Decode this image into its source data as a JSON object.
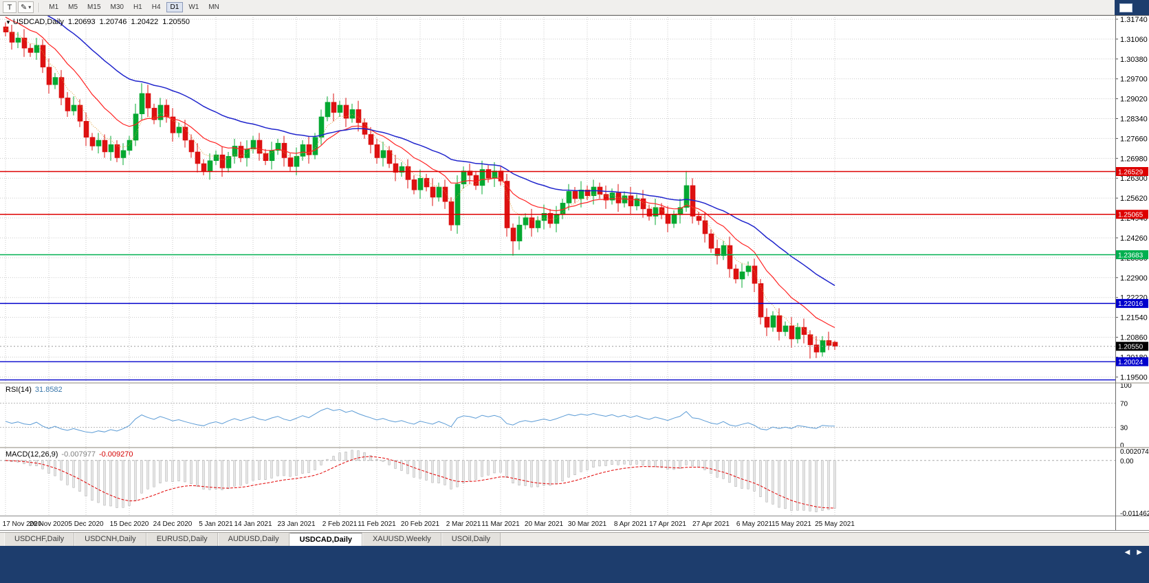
{
  "toolbar": {
    "text_tool": "T",
    "pencil_icon": "✎",
    "caret_icon": "▾",
    "timeframes": [
      "M1",
      "M5",
      "M15",
      "M30",
      "H1",
      "H4",
      "D1",
      "W1",
      "MN"
    ],
    "active_timeframe": "D1"
  },
  "chart_header": {
    "collapse_icon": "▼",
    "symbol": "USDCAD,Daily",
    "open": "1.20693",
    "high": "1.20746",
    "low": "1.20422",
    "close": "1.20550"
  },
  "indicators_ui": {
    "rsi_name": "RSI(14)",
    "rsi_value": "31.8582",
    "macd_name": "MACD(12,26,9)",
    "macd_main": "-0.007977",
    "macd_signal": "-0.009270"
  },
  "tabs": {
    "items": [
      "USDCHF,Daily",
      "USDCNH,Daily",
      "EURUSD,Daily",
      "AUDUSD,Daily",
      "USDCAD,Daily",
      "XAUUSD,Weekly",
      "USOil,Daily"
    ],
    "active": "USDCAD,Daily"
  },
  "tab_scroll": {
    "left": "◀",
    "right": "▶"
  },
  "chart_data": {
    "type": "candlestick",
    "symbol": "USDCAD",
    "timeframe": "Daily",
    "y_range": {
      "top": 1.3188,
      "bottom": 1.1932
    },
    "y_axis_labels": [
      "1.31740",
      "1.31060",
      "1.30380",
      "1.29700",
      "1.29020",
      "1.28340",
      "1.27660",
      "1.26980",
      "1.26300",
      "1.25620",
      "1.24940",
      "1.24260",
      "1.23580",
      "1.22900",
      "1.22220",
      "1.21540",
      "1.20860",
      "1.20180",
      "1.19500"
    ],
    "x_labels": [
      "17 Nov 2020",
      "26 Nov 2020",
      "5 Dec 2020",
      "15 Dec 2020",
      "24 Dec 2020",
      "5 Jan 2021",
      "14 Jan 2021",
      "23 Jan 2021",
      "2 Feb 2021",
      "11 Feb 2021",
      "20 Feb 2021",
      "2 Mar 2021",
      "11 Mar 2021",
      "20 Mar 2021",
      "30 Mar 2021",
      "8 Apr 2021",
      "17 Apr 2021",
      "27 Apr 2021",
      "6 May 2021",
      "15 May 2021",
      "25 May 2021"
    ],
    "current_price": {
      "value": 1.2055,
      "label": "1.20550"
    },
    "hlines": [
      {
        "price": 1.26529,
        "label": "1.26529",
        "color": "#dd0000"
      },
      {
        "price": 1.25065,
        "label": "1.25065",
        "color": "#dd0000"
      },
      {
        "price": 1.23683,
        "label": "1.23683",
        "color": "#00b050"
      },
      {
        "price": 1.22016,
        "label": "1.22016",
        "color": "#0000cc"
      },
      {
        "price": 1.20024,
        "label": "1.20024",
        "color": "#0000cc"
      },
      {
        "price": 1.194,
        "label": "",
        "color": "#0000cc"
      }
    ],
    "colors": {
      "up": "#04a831",
      "down": "#dd1111",
      "grid": "#c9c9c9",
      "hist_fill": "#e6e6e6",
      "hist_stroke": "#a5a5a5"
    },
    "indicators": {
      "ma": [
        {
          "period": 5,
          "color": "#dd9c33",
          "dash": "1,2",
          "width": 1,
          "seed_offset": 0.002
        },
        {
          "period": 13,
          "color": "#ff2222",
          "dash": "",
          "width": 1.2,
          "seed_offset": 0.006
        },
        {
          "period": 34,
          "color": "#1f24cc",
          "dash": "",
          "width": 1.5,
          "seed_offset": 0.013
        }
      ],
      "rsi": {
        "period": 14,
        "color": "#5b9bd5",
        "levels": [
          70,
          30
        ],
        "axis_labels": [
          {
            "v": 100,
            "label": "100"
          },
          {
            "v": 70,
            "label": "70"
          },
          {
            "v": 30,
            "label": "30"
          },
          {
            "v": 0,
            "label": "0"
          }
        ]
      },
      "macd": {
        "fast": 12,
        "slow": 26,
        "signal": 9,
        "range": {
          "top": 0.002074,
          "bottom": -0.011462
        },
        "axis_labels": [
          {
            "v": 0.002074,
            "label": "0.002074"
          },
          {
            "v": 0,
            "label": "0.00"
          },
          {
            "v": -0.011462,
            "label": "-0.011462"
          }
        ]
      }
    },
    "candles": [
      [
        1.3148,
        1.3163,
        1.3115,
        1.313
      ],
      [
        1.313,
        1.3155,
        1.307,
        1.3095
      ],
      [
        1.3095,
        1.313,
        1.3075,
        1.311
      ],
      [
        1.311,
        1.314,
        1.3045,
        1.3075
      ],
      [
        1.3075,
        1.309,
        1.3045,
        1.306
      ],
      [
        1.306,
        1.311,
        1.3035,
        1.3085
      ],
      [
        1.3085,
        1.3105,
        1.299,
        1.301
      ],
      [
        1.301,
        1.304,
        1.292,
        1.295
      ],
      [
        1.295,
        1.299,
        1.2935,
        1.2975
      ],
      [
        1.2975,
        1.3,
        1.288,
        1.2905
      ],
      [
        1.2905,
        1.2925,
        1.284,
        1.286
      ],
      [
        1.286,
        1.291,
        1.2845,
        1.288
      ],
      [
        1.288,
        1.29,
        1.2805,
        1.2825
      ],
      [
        1.2825,
        1.2855,
        1.274,
        1.277
      ],
      [
        1.277,
        1.2785,
        1.2725,
        1.274
      ],
      [
        1.274,
        1.2785,
        1.2715,
        1.276
      ],
      [
        1.276,
        1.278,
        1.27,
        1.272
      ],
      [
        1.272,
        1.2775,
        1.269,
        1.2745
      ],
      [
        1.2745,
        1.276,
        1.2685,
        1.27
      ],
      [
        1.27,
        1.275,
        1.2675,
        1.2725
      ],
      [
        1.2725,
        1.2775,
        1.271,
        1.276
      ],
      [
        1.276,
        1.2885,
        1.274,
        1.285
      ],
      [
        1.285,
        1.2955,
        1.283,
        1.292
      ],
      [
        1.292,
        1.295,
        1.284,
        1.287
      ],
      [
        1.287,
        1.2885,
        1.2815,
        1.283
      ],
      [
        1.283,
        1.2905,
        1.2805,
        1.288
      ],
      [
        1.288,
        1.29,
        1.282,
        1.284
      ],
      [
        1.284,
        1.287,
        1.2755,
        1.2785
      ],
      [
        1.2785,
        1.282,
        1.277,
        1.2805
      ],
      [
        1.2805,
        1.283,
        1.2735,
        1.276
      ],
      [
        1.276,
        1.278,
        1.27,
        1.272
      ],
      [
        1.272,
        1.275,
        1.265,
        1.268
      ],
      [
        1.268,
        1.2695,
        1.264,
        1.2655
      ],
      [
        1.2655,
        1.2715,
        1.2625,
        1.269
      ],
      [
        1.269,
        1.2725,
        1.2675,
        1.271
      ],
      [
        1.271,
        1.274,
        1.2635,
        1.2665
      ],
      [
        1.2665,
        1.272,
        1.265,
        1.2705
      ],
      [
        1.2705,
        1.2765,
        1.268,
        1.274
      ],
      [
        1.274,
        1.2755,
        1.2685,
        1.27
      ],
      [
        1.27,
        1.276,
        1.267,
        1.273
      ],
      [
        1.273,
        1.2775,
        1.2715,
        1.276
      ],
      [
        1.276,
        1.2785,
        1.269,
        1.2715
      ],
      [
        1.2715,
        1.273,
        1.2675,
        1.269
      ],
      [
        1.269,
        1.2755,
        1.266,
        1.2725
      ],
      [
        1.2725,
        1.2765,
        1.271,
        1.275
      ],
      [
        1.275,
        1.2775,
        1.267,
        1.27
      ],
      [
        1.27,
        1.2715,
        1.2655,
        1.267
      ],
      [
        1.267,
        1.2735,
        1.264,
        1.2705
      ],
      [
        1.2705,
        1.276,
        1.269,
        1.2745
      ],
      [
        1.2745,
        1.2775,
        1.268,
        1.271
      ],
      [
        1.271,
        1.2785,
        1.2695,
        1.277
      ],
      [
        1.277,
        1.2865,
        1.2745,
        1.284
      ],
      [
        1.284,
        1.291,
        1.2825,
        1.289
      ],
      [
        1.289,
        1.292,
        1.2825,
        1.2855
      ],
      [
        1.2855,
        1.2895,
        1.284,
        1.288
      ],
      [
        1.288,
        1.2905,
        1.2805,
        1.2835
      ],
      [
        1.2835,
        1.2885,
        1.282,
        1.2865
      ],
      [
        1.2865,
        1.2895,
        1.279,
        1.282
      ],
      [
        1.282,
        1.2835,
        1.2765,
        1.278
      ],
      [
        1.278,
        1.2805,
        1.2715,
        1.2745
      ],
      [
        1.2745,
        1.2765,
        1.268,
        1.27
      ],
      [
        1.27,
        1.2755,
        1.267,
        1.2725
      ],
      [
        1.2725,
        1.274,
        1.2665,
        1.268
      ],
      [
        1.268,
        1.271,
        1.262,
        1.265
      ],
      [
        1.265,
        1.2685,
        1.2635,
        1.267
      ],
      [
        1.267,
        1.2695,
        1.2595,
        1.2625
      ],
      [
        1.2625,
        1.264,
        1.2575,
        1.259
      ],
      [
        1.259,
        1.266,
        1.256,
        1.263
      ],
      [
        1.263,
        1.2645,
        1.2585,
        1.26
      ],
      [
        1.26,
        1.263,
        1.2535,
        1.2565
      ],
      [
        1.2565,
        1.2615,
        1.255,
        1.26
      ],
      [
        1.26,
        1.2625,
        1.2525,
        1.255
      ],
      [
        1.255,
        1.2565,
        1.245,
        1.247
      ],
      [
        1.247,
        1.264,
        1.244,
        1.261
      ],
      [
        1.261,
        1.267,
        1.2595,
        1.2655
      ],
      [
        1.2655,
        1.268,
        1.261,
        1.264
      ],
      [
        1.264,
        1.2655,
        1.259,
        1.2605
      ],
      [
        1.2605,
        1.269,
        1.2575,
        1.266
      ],
      [
        1.266,
        1.2675,
        1.2615,
        1.263
      ],
      [
        1.263,
        1.2685,
        1.26,
        1.2655
      ],
      [
        1.2655,
        1.267,
        1.2605,
        1.262
      ],
      [
        1.262,
        1.2645,
        1.243,
        1.246
      ],
      [
        1.246,
        1.2475,
        1.2365,
        1.2415
      ],
      [
        1.2415,
        1.25,
        1.2385,
        1.247
      ],
      [
        1.247,
        1.251,
        1.2455,
        1.2495
      ],
      [
        1.2495,
        1.2525,
        1.243,
        1.246
      ],
      [
        1.246,
        1.25,
        1.2445,
        1.2485
      ],
      [
        1.2485,
        1.254,
        1.2455,
        1.251
      ],
      [
        1.251,
        1.2525,
        1.246,
        1.2475
      ],
      [
        1.2475,
        1.2535,
        1.2445,
        1.2505
      ],
      [
        1.2505,
        1.256,
        1.249,
        1.2545
      ],
      [
        1.2545,
        1.261,
        1.252,
        1.2585
      ],
      [
        1.2585,
        1.26,
        1.2545,
        1.256
      ],
      [
        1.256,
        1.262,
        1.253,
        1.259
      ],
      [
        1.259,
        1.2605,
        1.2555,
        1.257
      ],
      [
        1.257,
        1.2625,
        1.254,
        1.26
      ],
      [
        1.26,
        1.2615,
        1.256,
        1.2575
      ],
      [
        1.2575,
        1.2605,
        1.2525,
        1.2555
      ],
      [
        1.2555,
        1.2595,
        1.254,
        1.258
      ],
      [
        1.258,
        1.261,
        1.2515,
        1.2545
      ],
      [
        1.2545,
        1.2585,
        1.253,
        1.257
      ],
      [
        1.257,
        1.26,
        1.2505,
        1.2535
      ],
      [
        1.2535,
        1.2575,
        1.252,
        1.256
      ],
      [
        1.256,
        1.259,
        1.2495,
        1.2525
      ],
      [
        1.2525,
        1.254,
        1.2485,
        1.25
      ],
      [
        1.25,
        1.256,
        1.247,
        1.253
      ],
      [
        1.253,
        1.2545,
        1.249,
        1.2505
      ],
      [
        1.2505,
        1.2535,
        1.2445,
        1.2475
      ],
      [
        1.2475,
        1.252,
        1.246,
        1.2505
      ],
      [
        1.2505,
        1.256,
        1.2475,
        1.253
      ],
      [
        1.253,
        1.2655,
        1.2515,
        1.2605
      ],
      [
        1.2605,
        1.263,
        1.2475,
        1.25
      ],
      [
        1.25,
        1.2515,
        1.247,
        1.2485
      ],
      [
        1.2485,
        1.2515,
        1.241,
        1.244
      ],
      [
        1.244,
        1.2455,
        1.2375,
        1.239
      ],
      [
        1.239,
        1.242,
        1.2335,
        1.2365
      ],
      [
        1.2365,
        1.2415,
        1.235,
        1.24
      ],
      [
        1.24,
        1.243,
        1.229,
        1.232
      ],
      [
        1.232,
        1.2335,
        1.227,
        1.2285
      ],
      [
        1.2285,
        1.234,
        1.2255,
        1.231
      ],
      [
        1.231,
        1.2345,
        1.2295,
        1.233
      ],
      [
        1.233,
        1.2355,
        1.224,
        1.227
      ],
      [
        1.227,
        1.2285,
        1.213,
        1.2155
      ],
      [
        1.2155,
        1.2185,
        1.209,
        1.212
      ],
      [
        1.212,
        1.2175,
        1.2105,
        1.216
      ],
      [
        1.216,
        1.2185,
        1.2075,
        1.2105
      ],
      [
        1.2105,
        1.214,
        1.209,
        1.2125
      ],
      [
        1.2125,
        1.2155,
        1.205,
        1.208
      ],
      [
        1.208,
        1.2135,
        1.2065,
        1.212
      ],
      [
        1.212,
        1.215,
        1.2065,
        1.2095
      ],
      [
        1.2095,
        1.211,
        1.2013,
        1.206
      ],
      [
        1.206,
        1.209,
        1.2015,
        1.2035
      ],
      [
        1.2035,
        1.209,
        1.202,
        1.2075
      ],
      [
        1.2075,
        1.2105,
        1.2042,
        1.2058
      ],
      [
        1.20693,
        1.20746,
        1.20422,
        1.2055
      ]
    ]
  }
}
